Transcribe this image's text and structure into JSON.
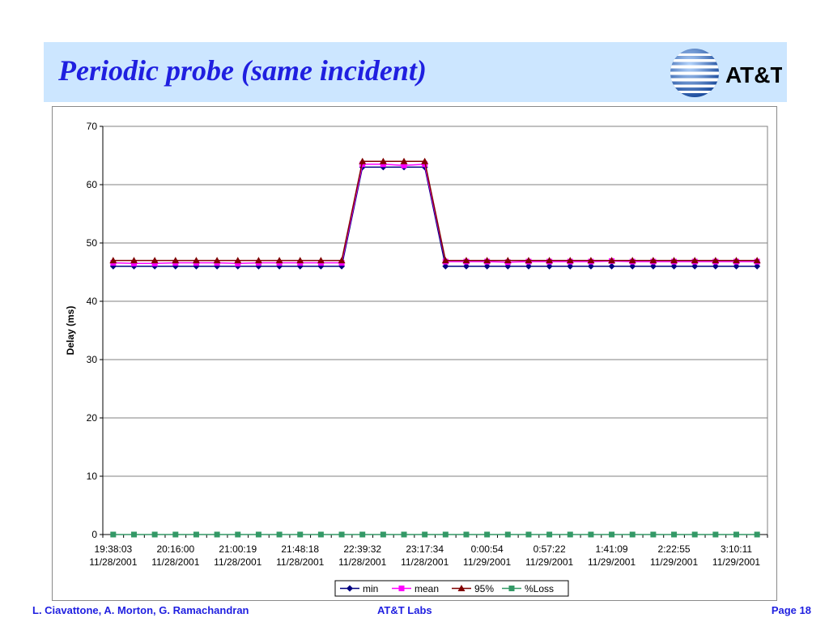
{
  "slide": {
    "title": "Periodic probe (same incident)",
    "logo_text": "AT&T"
  },
  "footer": {
    "authors": "L. Ciavattone, A. Morton, G. Ramachandran",
    "org": "AT&T Labs",
    "page": "Page 18"
  },
  "colors": {
    "title_band": "#cce6ff",
    "title_text": "#1f1fe0",
    "min": "#000080",
    "mean": "#ff00ff",
    "p95": "#800000",
    "loss": "#339966"
  },
  "chart_data": {
    "type": "line",
    "title": "",
    "xlabel": "",
    "ylabel": "Delay (ms)",
    "ylim": [
      0,
      70
    ],
    "yticks": [
      0,
      10,
      20,
      30,
      40,
      50,
      60,
      70
    ],
    "grid": true,
    "legend_position": "bottom",
    "x_tick_labels": [
      {
        "index": 0,
        "time": "19:38:03",
        "date": "11/28/2001"
      },
      {
        "index": 3,
        "time": "20:16:00",
        "date": "11/28/2001"
      },
      {
        "index": 6,
        "time": "21:00:19",
        "date": "11/28/2001"
      },
      {
        "index": 9,
        "time": "21:48:18",
        "date": "11/28/2001"
      },
      {
        "index": 12,
        "time": "22:39:32",
        "date": "11/28/2001"
      },
      {
        "index": 15,
        "time": "23:17:34",
        "date": "11/28/2001"
      },
      {
        "index": 18,
        "time": "0:00:54",
        "date": "11/29/2001"
      },
      {
        "index": 21,
        "time": "0:57:22",
        "date": "11/29/2001"
      },
      {
        "index": 24,
        "time": "1:41:09",
        "date": "11/29/2001"
      },
      {
        "index": 27,
        "time": "2:22:55",
        "date": "11/29/2001"
      },
      {
        "index": 30,
        "time": "3:10:11",
        "date": "11/29/2001"
      }
    ],
    "series": [
      {
        "name": "min",
        "marker": "diamond",
        "color": "#000080",
        "values": [
          46,
          46,
          46,
          46,
          46,
          46,
          46,
          46,
          46,
          46,
          46,
          46,
          63,
          63,
          63,
          63,
          46,
          46,
          46,
          46,
          46,
          46,
          46,
          46,
          46,
          46,
          46,
          46,
          46,
          46,
          46,
          46
        ]
      },
      {
        "name": "mean",
        "marker": "square",
        "color": "#ff00ff",
        "values": [
          46.6,
          46.5,
          46.5,
          46.6,
          46.6,
          46.6,
          46.5,
          46.6,
          46.6,
          46.6,
          46.6,
          46.6,
          63.5,
          63.5,
          63.3,
          63.5,
          46.8,
          46.8,
          46.8,
          46.7,
          46.8,
          46.8,
          46.8,
          46.8,
          46.9,
          46.8,
          46.8,
          46.8,
          46.8,
          46.8,
          46.8,
          46.8
        ]
      },
      {
        "name": "95%",
        "marker": "triangle",
        "color": "#800000",
        "values": [
          47,
          47,
          47,
          47,
          47,
          47,
          47,
          47,
          47,
          47,
          47,
          47,
          64,
          64,
          64,
          64,
          47,
          47,
          47,
          47,
          47,
          47,
          47,
          47,
          47,
          47,
          47,
          47,
          47,
          47,
          47,
          47
        ]
      },
      {
        "name": "%Loss",
        "marker": "square",
        "color": "#339966",
        "values": [
          0,
          0,
          0,
          0,
          0,
          0,
          0,
          0,
          0,
          0,
          0,
          0,
          0,
          0,
          0,
          0,
          0,
          0,
          0,
          0,
          0,
          0,
          0,
          0,
          0,
          0,
          0,
          0,
          0,
          0,
          0,
          0
        ]
      }
    ]
  }
}
